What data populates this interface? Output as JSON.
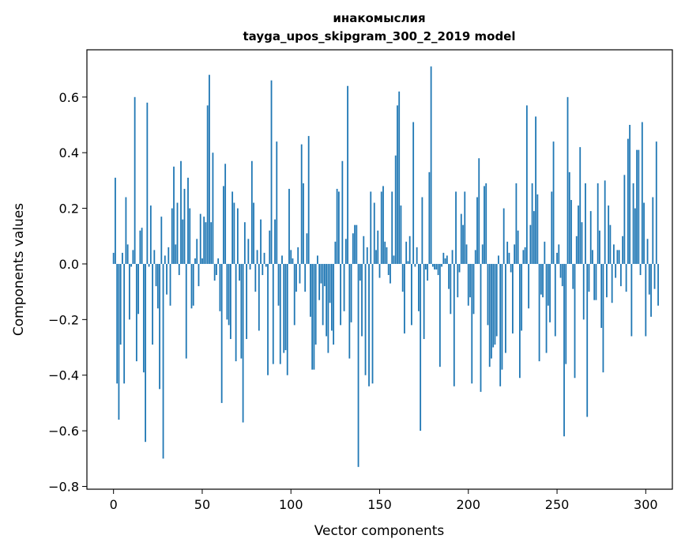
{
  "chart_data": {
    "type": "bar",
    "title": "инакомыслия",
    "subtitle": "tayga_upos_skipgram_300_2_2019 model",
    "xlabel": "Vector components",
    "ylabel": "Components values",
    "xlim": [
      -15,
      315
    ],
    "ylim": [
      -0.81,
      0.77
    ],
    "xticks": [
      0,
      50,
      100,
      150,
      200,
      250,
      300
    ],
    "yticks": [
      -0.8,
      -0.6,
      -0.4,
      -0.2,
      0.0,
      0.2,
      0.4,
      0.6
    ],
    "ytick_labels": [
      "−0.8",
      "−0.6",
      "−0.4",
      "−0.2",
      "0.0",
      "0.2",
      "0.4",
      "0.6"
    ],
    "bar_color": "#1f77b4",
    "grid": false,
    "legend": "none",
    "values": [
      0.04,
      0.31,
      -0.43,
      -0.56,
      -0.29,
      0.04,
      -0.43,
      0.24,
      0.07,
      -0.2,
      -0.01,
      0.05,
      0.6,
      -0.35,
      -0.18,
      0.12,
      0.13,
      -0.39,
      -0.64,
      0.58,
      -0.01,
      0.21,
      -0.29,
      0.05,
      -0.08,
      -0.16,
      -0.45,
      0.17,
      -0.7,
      0.03,
      -0.11,
      0.06,
      -0.15,
      0.2,
      0.35,
      0.07,
      0.22,
      -0.04,
      0.37,
      0.16,
      0.27,
      -0.34,
      0.31,
      0.2,
      -0.16,
      -0.15,
      0.02,
      0.09,
      -0.08,
      0.18,
      0.02,
      0.17,
      0.15,
      0.57,
      0.68,
      0.15,
      0.4,
      -0.06,
      -0.04,
      0.02,
      -0.17,
      -0.5,
      0.28,
      0.36,
      -0.2,
      -0.22,
      -0.27,
      0.26,
      0.22,
      -0.35,
      0.2,
      -0.06,
      -0.34,
      -0.57,
      0.15,
      -0.27,
      0.09,
      -0.02,
      0.37,
      0.22,
      -0.1,
      0.05,
      -0.24,
      0.16,
      -0.04,
      0.04,
      -0.01,
      -0.4,
      0.12,
      0.66,
      -0.36,
      0.16,
      0.44,
      -0.15,
      -0.36,
      0.03,
      -0.32,
      -0.31,
      -0.4,
      0.27,
      0.05,
      0.02,
      -0.22,
      -0.1,
      0.06,
      -0.07,
      0.43,
      0.29,
      -0.1,
      0.11,
      0.46,
      -0.19,
      -0.38,
      -0.38,
      -0.29,
      0.03,
      -0.13,
      -0.07,
      -0.22,
      -0.08,
      -0.26,
      -0.32,
      -0.14,
      -0.24,
      -0.29,
      0.08,
      0.27,
      0.26,
      -0.22,
      0.37,
      -0.17,
      0.09,
      0.64,
      -0.34,
      -0.21,
      0.11,
      0.14,
      0.14,
      -0.73,
      -0.06,
      -0.26,
      0.1,
      -0.4,
      0.06,
      -0.44,
      0.26,
      -0.43,
      0.22,
      0.05,
      0.12,
      -0.05,
      0.26,
      0.28,
      0.08,
      0.06,
      -0.04,
      -0.07,
      0.26,
      0.03,
      0.39,
      0.57,
      0.62,
      0.21,
      -0.1,
      -0.25,
      0.08,
      0.01,
      0.1,
      -0.22,
      0.51,
      -0.01,
      0.06,
      -0.17,
      -0.6,
      0.24,
      -0.27,
      -0.02,
      -0.06,
      0.33,
      0.71,
      -0.01,
      -0.02,
      -0.02,
      -0.04,
      -0.37,
      -0.01,
      0.04,
      0.02,
      0.03,
      -0.09,
      -0.18,
      0.05,
      -0.44,
      0.26,
      -0.12,
      -0.03,
      0.18,
      0.14,
      0.26,
      0.07,
      -0.15,
      -0.12,
      -0.43,
      -0.18,
      0.05,
      0.24,
      0.38,
      -0.46,
      0.07,
      0.28,
      0.29,
      -0.22,
      -0.37,
      -0.34,
      -0.3,
      -0.29,
      -0.26,
      0.03,
      -0.44,
      -0.38,
      0.2,
      -0.32,
      0.08,
      0.04,
      -0.03,
      -0.25,
      0.07,
      0.29,
      0.12,
      -0.41,
      -0.24,
      0.05,
      0.06,
      0.57,
      -0.16,
      0.14,
      0.29,
      0.19,
      0.53,
      0.25,
      -0.35,
      -0.11,
      -0.12,
      0.08,
      -0.32,
      -0.15,
      -0.21,
      0.26,
      0.44,
      -0.26,
      0.04,
      0.07,
      -0.05,
      -0.08,
      -0.62,
      -0.36,
      0.6,
      0.33,
      0.23,
      -0.09,
      -0.41,
      0.1,
      0.21,
      0.42,
      0.15,
      -0.2,
      0.29,
      -0.55,
      -0.1,
      0.19,
      0.05,
      -0.13,
      -0.13,
      0.29,
      0.12,
      -0.23,
      -0.39,
      0.3,
      -0.12,
      0.21,
      0.14,
      -0.14,
      0.07,
      -0.05,
      0.05,
      0.05,
      -0.08,
      0.1,
      0.32,
      -0.1,
      0.45,
      0.5,
      -0.26,
      0.29,
      0.2,
      0.41,
      0.41,
      -0.04,
      0.51,
      0.22,
      -0.26,
      0.09,
      -0.11,
      -0.19,
      0.24,
      -0.09,
      0.44,
      -0.15
    ]
  }
}
